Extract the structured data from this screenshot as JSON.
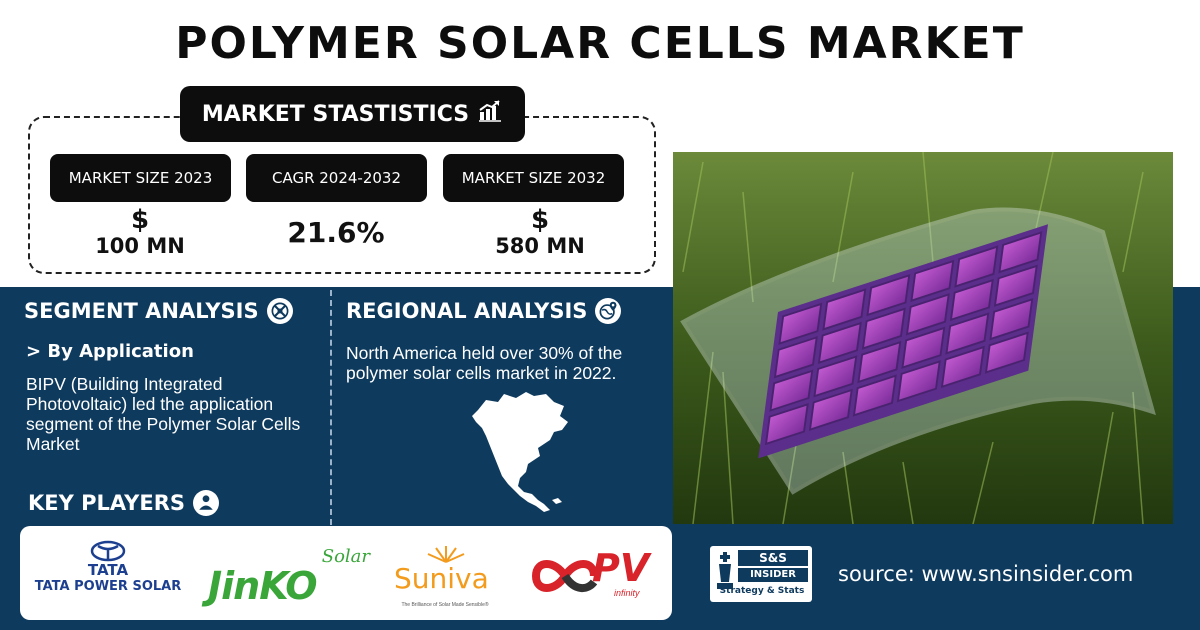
{
  "title": "POLYMER SOLAR CELLS MARKET",
  "stats": {
    "heading": "MARKET STASTISTICS",
    "items": [
      {
        "label": "MARKET SIZE 2023",
        "symbol": "$",
        "value": "100 MN"
      },
      {
        "label": "CAGR 2024-2032",
        "value": "21.6%"
      },
      {
        "label": "MARKET SIZE 2032",
        "symbol": "$",
        "value": "580 MN"
      }
    ]
  },
  "segment": {
    "heading": "SEGMENT ANALYSIS",
    "subheading": "> By Application",
    "text": "BIPV (Building Integrated Photovoltaic) led the application segment of the Polymer Solar Cells Market"
  },
  "regional": {
    "heading": "REGIONAL ANALYSIS",
    "text": "North America held over 30% of the polymer solar cells market in 2022."
  },
  "key_players": {
    "heading": "KEY PLAYERS",
    "logos": [
      {
        "name": "TATA",
        "sub": "TATA POWER SOLAR"
      },
      {
        "name": "JinKO",
        "sub": "Solar"
      },
      {
        "name": "Suniva",
        "sub": "The Brilliance of Solar Made Sensible®"
      },
      {
        "name": "PV",
        "sub": "infinity"
      }
    ]
  },
  "brand": {
    "top": "S&S",
    "middle": "INSIDER",
    "bottom": "Strategy & Stats"
  },
  "source": "source: www.snsinsider.com",
  "colors": {
    "navy": "#0e3a5e",
    "black": "#0d0d0d",
    "jinko_green": "#3aa63a",
    "suniva_orange": "#f29b1d",
    "pv_red": "#d8232a"
  }
}
